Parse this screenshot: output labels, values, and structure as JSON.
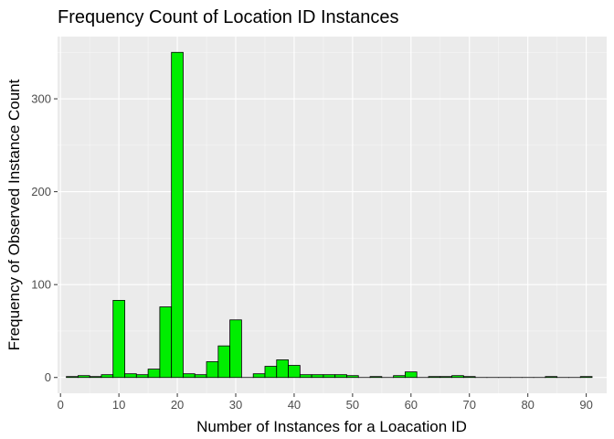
{
  "chart_data": {
    "type": "bar",
    "title": "Frequency Count of Location ID Instances",
    "xlabel": "Number of Instances for a Loacation ID",
    "ylabel": "Frequency of Observed Instance Count",
    "xlim": [
      -0.5,
      93.5
    ],
    "ylim": [
      -17,
      367
    ],
    "x_ticks": [
      0,
      10,
      20,
      30,
      40,
      50,
      60,
      70,
      80,
      90
    ],
    "y_ticks": [
      0,
      100,
      200,
      300
    ],
    "bin_width": 2,
    "x": [
      2,
      4,
      6,
      8,
      10,
      12,
      14,
      16,
      18,
      20,
      22,
      24,
      26,
      28,
      30,
      32,
      34,
      36,
      38,
      40,
      42,
      44,
      46,
      48,
      50,
      52,
      54,
      56,
      58,
      60,
      62,
      64,
      66,
      68,
      70,
      72,
      74,
      76,
      78,
      80,
      82,
      84,
      86,
      88,
      90
    ],
    "values": [
      1,
      2,
      1,
      3,
      83,
      4,
      3,
      9,
      76,
      350,
      4,
      3,
      17,
      34,
      62,
      0,
      4,
      12,
      19,
      13,
      3,
      3,
      3,
      3,
      2,
      0,
      1,
      0,
      2,
      6,
      0,
      1,
      1,
      2,
      1,
      0,
      0,
      0,
      0,
      0,
      0,
      1,
      0,
      0,
      1
    ],
    "grid": true,
    "bar_fill": "#00ee00",
    "bar_edge": "#000000",
    "panel_background": "#ebebeb"
  }
}
